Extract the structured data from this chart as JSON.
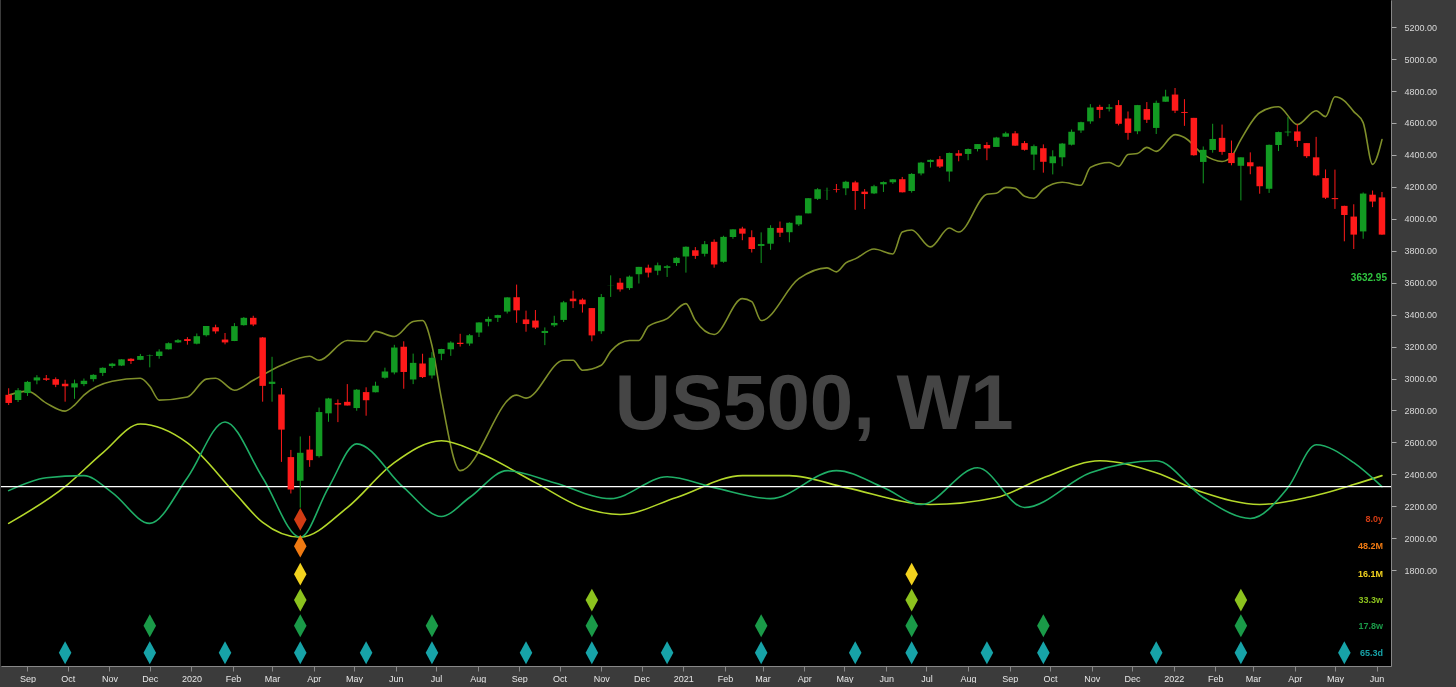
{
  "chart_data": {
    "type": "candlestick",
    "x": [
      "2019-08-18",
      "2019-08-25",
      "2019-09-01",
      "2019-09-08",
      "2019-09-15",
      "2019-09-22",
      "2019-09-29",
      "2019-10-06",
      "2019-10-13",
      "2019-10-20",
      "2019-10-27",
      "2019-11-03",
      "2019-11-10",
      "2019-11-17",
      "2019-11-24",
      "2019-12-01",
      "2019-12-08",
      "2019-12-15",
      "2019-12-22",
      "2019-12-29",
      "2020-01-05",
      "2020-01-12",
      "2020-01-19",
      "2020-01-26",
      "2020-02-02",
      "2020-02-09",
      "2020-02-16",
      "2020-02-23",
      "2020-03-01",
      "2020-03-08",
      "2020-03-15",
      "2020-03-22",
      "2020-03-29",
      "2020-04-05",
      "2020-04-12",
      "2020-04-19",
      "2020-04-26",
      "2020-05-03",
      "2020-05-10",
      "2020-05-17",
      "2020-05-24",
      "2020-05-31",
      "2020-06-07",
      "2020-06-14",
      "2020-06-21",
      "2020-06-28",
      "2020-07-05",
      "2020-07-12",
      "2020-07-19",
      "2020-07-26",
      "2020-08-02",
      "2020-08-09",
      "2020-08-16",
      "2020-08-23",
      "2020-08-30",
      "2020-09-06",
      "2020-09-13",
      "2020-09-20",
      "2020-09-27",
      "2020-10-04",
      "2020-10-11",
      "2020-10-18",
      "2020-10-25",
      "2020-11-01",
      "2020-11-08",
      "2020-11-15",
      "2020-11-22",
      "2020-11-29",
      "2020-12-06",
      "2020-12-13",
      "2020-12-20",
      "2020-12-27",
      "2021-01-03",
      "2021-01-10",
      "2021-01-17",
      "2021-01-24",
      "2021-01-31",
      "2021-02-07",
      "2021-02-14",
      "2021-02-21",
      "2021-02-28",
      "2021-03-07",
      "2021-03-14",
      "2021-03-21",
      "2021-03-28",
      "2021-04-04",
      "2021-04-11",
      "2021-04-18",
      "2021-04-25",
      "2021-05-02",
      "2021-05-09",
      "2021-05-16",
      "2021-05-23",
      "2021-05-30",
      "2021-06-06",
      "2021-06-13",
      "2021-06-20",
      "2021-06-27",
      "2021-07-04",
      "2021-07-11",
      "2021-07-18",
      "2021-07-25",
      "2021-08-01",
      "2021-08-08",
      "2021-08-15",
      "2021-08-22",
      "2021-08-29",
      "2021-09-05",
      "2021-09-12",
      "2021-09-19",
      "2021-09-26",
      "2021-10-03",
      "2021-10-10",
      "2021-10-17",
      "2021-10-24",
      "2021-10-31",
      "2021-11-07",
      "2021-11-14",
      "2021-11-21",
      "2021-11-28",
      "2021-12-05",
      "2021-12-12",
      "2021-12-19",
      "2021-12-26",
      "2022-01-02",
      "2022-01-09",
      "2022-01-16",
      "2022-01-23",
      "2022-01-30",
      "2022-02-06",
      "2022-02-13",
      "2022-02-20",
      "2022-02-27",
      "2022-03-06",
      "2022-03-13",
      "2022-03-20",
      "2022-03-27",
      "2022-04-03",
      "2022-04-10",
      "2022-04-17",
      "2022-04-24",
      "2022-05-01",
      "2022-05-08",
      "2022-05-15",
      "2022-05-22",
      "2022-05-29",
      "2022-06-05"
    ],
    "ohlc": [
      [
        2898,
        2939,
        2834,
        2847
      ],
      [
        2866,
        2940,
        2853,
        2926
      ],
      [
        2909,
        2985,
        2891,
        2979
      ],
      [
        2988,
        3021,
        2964,
        3007
      ],
      [
        3001,
        3022,
        2985,
        2992
      ],
      [
        2996,
        3007,
        2946,
        2961
      ],
      [
        2967,
        2992,
        2855,
        2952
      ],
      [
        2944,
        2993,
        2873,
        2970
      ],
      [
        2965,
        3000,
        2952,
        2986
      ],
      [
        2996,
        3027,
        2981,
        3023
      ],
      [
        3035,
        3070,
        3016,
        3067
      ],
      [
        3078,
        3098,
        3066,
        3093
      ],
      [
        3081,
        3121,
        3078,
        3120
      ],
      [
        3123,
        3127,
        3091,
        3110
      ],
      [
        3117,
        3154,
        3115,
        3141
      ],
      [
        3143,
        3150,
        3070,
        3146
      ],
      [
        3141,
        3183,
        3124,
        3169
      ],
      [
        3183,
        3226,
        3182,
        3221
      ],
      [
        3226,
        3247,
        3223,
        3240
      ],
      [
        3247,
        3259,
        3212,
        3235
      ],
      [
        3218,
        3282,
        3214,
        3265
      ],
      [
        3271,
        3329,
        3263,
        3329
      ],
      [
        3321,
        3337,
        3281,
        3295
      ],
      [
        3244,
        3285,
        3214,
        3226
      ],
      [
        3235,
        3347,
        3234,
        3328
      ],
      [
        3334,
        3385,
        3331,
        3380
      ],
      [
        3380,
        3393,
        3328,
        3338
      ],
      [
        3257,
        3260,
        2855,
        2954
      ],
      [
        2966,
        3136,
        2855,
        2980
      ],
      [
        2900,
        2940,
        2478,
        2680
      ],
      [
        2508,
        2553,
        2280,
        2305
      ],
      [
        2360,
        2637,
        2191,
        2535
      ],
      [
        2555,
        2641,
        2447,
        2489
      ],
      [
        2514,
        2818,
        2505,
        2790
      ],
      [
        2782,
        2879,
        2729,
        2875
      ],
      [
        2846,
        2869,
        2727,
        2837
      ],
      [
        2854,
        2965,
        2831,
        2831
      ],
      [
        2815,
        2934,
        2798,
        2930
      ],
      [
        2915,
        2945,
        2767,
        2864
      ],
      [
        2914,
        2980,
        2913,
        2955
      ],
      [
        3005,
        3068,
        2999,
        3044
      ],
      [
        3038,
        3211,
        3026,
        3194
      ],
      [
        3199,
        3233,
        2936,
        3041
      ],
      [
        2994,
        3156,
        2965,
        3098
      ],
      [
        3094,
        3155,
        3003,
        3009
      ],
      [
        3019,
        3165,
        3000,
        3130
      ],
      [
        3155,
        3186,
        3115,
        3185
      ],
      [
        3183,
        3233,
        3142,
        3225
      ],
      [
        3224,
        3280,
        3200,
        3216
      ],
      [
        3219,
        3279,
        3205,
        3271
      ],
      [
        3288,
        3352,
        3260,
        3351
      ],
      [
        3356,
        3387,
        3327,
        3373
      ],
      [
        3380,
        3399,
        3354,
        3397
      ],
      [
        3419,
        3509,
        3407,
        3508
      ],
      [
        3509,
        3588,
        3349,
        3427
      ],
      [
        3370,
        3425,
        3293,
        3341
      ],
      [
        3363,
        3429,
        3310,
        3319
      ],
      [
        3285,
        3320,
        3209,
        3298
      ],
      [
        3333,
        3393,
        3323,
        3348
      ],
      [
        3367,
        3486,
        3354,
        3477
      ],
      [
        3500,
        3550,
        3441,
        3484
      ],
      [
        3494,
        3502,
        3413,
        3465
      ],
      [
        3441,
        3441,
        3233,
        3270
      ],
      [
        3296,
        3529,
        3280,
        3510
      ],
      [
        3584,
        3646,
        3511,
        3585
      ],
      [
        3600,
        3628,
        3544,
        3558
      ],
      [
        3566,
        3645,
        3555,
        3638
      ],
      [
        3653,
        3699,
        3595,
        3699
      ],
      [
        3694,
        3713,
        3633,
        3663
      ],
      [
        3675,
        3726,
        3647,
        3709
      ],
      [
        3693,
        3711,
        3636,
        3703
      ],
      [
        3723,
        3760,
        3705,
        3756
      ],
      [
        3764,
        3827,
        3663,
        3825
      ],
      [
        3803,
        3823,
        3749,
        3768
      ],
      [
        3781,
        3861,
        3764,
        3841
      ],
      [
        3856,
        3871,
        3694,
        3714
      ],
      [
        3731,
        3894,
        3725,
        3887
      ],
      [
        3886,
        3935,
        3875,
        3934
      ],
      [
        3939,
        3950,
        3866,
        3907
      ],
      [
        3885,
        3928,
        3789,
        3811
      ],
      [
        3830,
        3915,
        3723,
        3842
      ],
      [
        3844,
        3960,
        3806,
        3943
      ],
      [
        3943,
        3983,
        3886,
        3913
      ],
      [
        3916,
        3978,
        3853,
        3975
      ],
      [
        3965,
        4020,
        3955,
        4020
      ],
      [
        4034,
        4130,
        4034,
        4129
      ],
      [
        4125,
        4192,
        4118,
        4185
      ],
      [
        4179,
        4195,
        4118,
        4180
      ],
      [
        4185,
        4218,
        4165,
        4181
      ],
      [
        4191,
        4238,
        4148,
        4232
      ],
      [
        4228,
        4238,
        4056,
        4174
      ],
      [
        4170,
        4186,
        4061,
        4155
      ],
      [
        4159,
        4213,
        4155,
        4204
      ],
      [
        4216,
        4234,
        4168,
        4230
      ],
      [
        4229,
        4249,
        4219,
        4247
      ],
      [
        4248,
        4262,
        4165,
        4166
      ],
      [
        4174,
        4286,
        4164,
        4281
      ],
      [
        4284,
        4356,
        4272,
        4352
      ],
      [
        4356,
        4372,
        4321,
        4369
      ],
      [
        4373,
        4393,
        4318,
        4327
      ],
      [
        4296,
        4415,
        4233,
        4412
      ],
      [
        4410,
        4430,
        4360,
        4395
      ],
      [
        4406,
        4440,
        4367,
        4437
      ],
      [
        4437,
        4468,
        4422,
        4468
      ],
      [
        4462,
        4480,
        4367,
        4441
      ],
      [
        4450,
        4513,
        4450,
        4509
      ],
      [
        4514,
        4545,
        4513,
        4535
      ],
      [
        4535,
        4549,
        4457,
        4458
      ],
      [
        4474,
        4487,
        4427,
        4432
      ],
      [
        4402,
        4465,
        4305,
        4455
      ],
      [
        4442,
        4466,
        4289,
        4357
      ],
      [
        4348,
        4429,
        4278,
        4391
      ],
      [
        4385,
        4475,
        4329,
        4471
      ],
      [
        4464,
        4559,
        4459,
        4545
      ],
      [
        4553,
        4608,
        4538,
        4605
      ],
      [
        4610,
        4718,
        4595,
        4697
      ],
      [
        4701,
        4714,
        4630,
        4682
      ],
      [
        4689,
        4718,
        4672,
        4698
      ],
      [
        4712,
        4743,
        4585,
        4595
      ],
      [
        4628,
        4672,
        4495,
        4538
      ],
      [
        4548,
        4713,
        4530,
        4712
      ],
      [
        4687,
        4731,
        4600,
        4620
      ],
      [
        4569,
        4740,
        4531,
        4726
      ],
      [
        4733,
        4808,
        4733,
        4766
      ],
      [
        4778,
        4819,
        4662,
        4677
      ],
      [
        4669,
        4749,
        4582,
        4663
      ],
      [
        4632,
        4632,
        4395,
        4398
      ],
      [
        4356,
        4453,
        4222,
        4432
      ],
      [
        4431,
        4595,
        4414,
        4500
      ],
      [
        4507,
        4590,
        4401,
        4419
      ],
      [
        4412,
        4490,
        4335,
        4349
      ],
      [
        4332,
        4385,
        4115,
        4385
      ],
      [
        4354,
        4416,
        4279,
        4329
      ],
      [
        4327,
        4327,
        4157,
        4204
      ],
      [
        4188,
        4465,
        4162,
        4463
      ],
      [
        4462,
        4546,
        4424,
        4543
      ],
      [
        4541,
        4637,
        4517,
        4546
      ],
      [
        4547,
        4594,
        4450,
        4488
      ],
      [
        4474,
        4474,
        4381,
        4392
      ],
      [
        4385,
        4513,
        4267,
        4272
      ],
      [
        4255,
        4309,
        4124,
        4132
      ],
      [
        4130,
        4308,
        4062,
        4123
      ],
      [
        4081,
        4082,
        3859,
        4024
      ],
      [
        4014,
        4091,
        3811,
        3901
      ],
      [
        3921,
        4165,
        3875,
        4158
      ],
      [
        4151,
        4177,
        4073,
        4108
      ],
      [
        4134,
        4168,
        3900,
        3901
      ]
    ],
    "colors": [
      "#ff1a1a",
      "#129a22",
      "#129a22",
      "#129a22",
      "#ff1a1a",
      "#ff1a1a",
      "#ff1a1a",
      "#129a22",
      "#129a22",
      "#129a22",
      "#129a22",
      "#129a22",
      "#129a22",
      "#ff1a1a",
      "#129a22",
      "#129a22",
      "#129a22",
      "#129a22",
      "#129a22",
      "#ff1a1a",
      "#129a22",
      "#129a22",
      "#ff1a1a",
      "#ff1a1a",
      "#129a22",
      "#129a22",
      "#ff1a1a",
      "#ff1a1a",
      "#129a22",
      "#ff1a1a",
      "#ff1a1a",
      "#129a22",
      "#ff1a1a",
      "#129a22",
      "#129a22",
      "#ff1a1a",
      "#ff1a1a",
      "#129a22",
      "#ff1a1a",
      "#129a22",
      "#129a22",
      "#129a22",
      "#ff1a1a",
      "#129a22",
      "#ff1a1a",
      "#129a22",
      "#129a22",
      "#129a22",
      "#ff1a1a",
      "#129a22",
      "#129a22",
      "#129a22",
      "#129a22",
      "#129a22",
      "#ff1a1a",
      "#ff1a1a",
      "#ff1a1a",
      "#129a22",
      "#129a22",
      "#129a22",
      "#ff1a1a",
      "#ff1a1a",
      "#ff1a1a",
      "#129a22",
      "#129a22",
      "#ff1a1a",
      "#129a22",
      "#129a22",
      "#ff1a1a",
      "#129a22",
      "#129a22",
      "#129a22",
      "#129a22",
      "#ff1a1a",
      "#129a22",
      "#ff1a1a",
      "#129a22",
      "#129a22",
      "#ff1a1a",
      "#ff1a1a",
      "#129a22",
      "#129a22",
      "#ff1a1a",
      "#129a22",
      "#129a22",
      "#129a22",
      "#129a22",
      "#129a22",
      "#ff1a1a",
      "#129a22",
      "#ff1a1a",
      "#ff1a1a",
      "#129a22",
      "#129a22",
      "#129a22",
      "#ff1a1a",
      "#129a22",
      "#129a22",
      "#129a22",
      "#ff1a1a",
      "#129a22",
      "#ff1a1a",
      "#129a22",
      "#129a22",
      "#ff1a1a",
      "#129a22",
      "#129a22",
      "#ff1a1a",
      "#ff1a1a",
      "#129a22",
      "#ff1a1a",
      "#129a22",
      "#129a22",
      "#129a22",
      "#129a22",
      "#129a22",
      "#ff1a1a",
      "#129a22",
      "#ff1a1a",
      "#ff1a1a",
      "#129a22",
      "#ff1a1a",
      "#129a22",
      "#129a22",
      "#ff1a1a",
      "#ff1a1a",
      "#ff1a1a",
      "#129a22",
      "#129a22",
      "#ff1a1a",
      "#ff1a1a",
      "#129a22",
      "#ff1a1a",
      "#ff1a1a",
      "#129a22",
      "#129a22",
      "#129a22",
      "#ff1a1a",
      "#ff1a1a",
      "#ff1a1a",
      "#ff1a1a",
      "#ff1a1a",
      "#ff1a1a",
      "#ff1a1a",
      "#129a22",
      "#ff1a1a",
      "#ff1a1a"
    ],
    "series": [
      {
        "type": "line",
        "color": "#7f8f2a",
        "x": [
          "2019-08-18",
          "2019-09-01",
          "2019-09-15",
          "2019-09-29",
          "2019-10-06",
          "2019-10-13",
          "2019-11-03",
          "2019-11-24",
          "2019-12-01",
          "2019-12-08",
          "2019-12-29",
          "2020-01-12",
          "2020-01-19",
          "2020-02-02",
          "2020-02-16",
          "2020-03-08",
          "2020-03-29",
          "2020-04-05",
          "2020-04-26",
          "2020-05-10",
          "2020-05-17",
          "2020-05-31",
          "2020-06-14",
          "2020-06-21",
          "2020-06-28",
          "2020-07-05",
          "2020-07-19",
          "2020-08-30",
          "2020-09-06",
          "2020-10-04",
          "2020-10-11",
          "2020-10-18",
          "2020-11-01",
          "2020-11-08",
          "2020-11-22",
          "2020-11-29",
          "2020-12-06",
          "2020-12-20",
          "2021-01-03",
          "2021-01-10",
          "2021-01-24",
          "2021-02-14",
          "2021-02-21",
          "2021-02-28",
          "2021-03-28",
          "2021-04-18",
          "2021-04-25",
          "2021-05-02",
          "2021-05-09",
          "2021-05-23",
          "2021-06-06",
          "2021-06-13",
          "2021-06-20",
          "2021-07-04",
          "2021-07-18",
          "2021-07-25",
          "2021-08-15",
          "2021-08-22",
          "2021-08-29",
          "2021-09-05",
          "2021-09-12",
          "2021-09-19",
          "2021-09-26",
          "2021-10-10",
          "2021-10-24",
          "2021-10-31",
          "2021-11-14",
          "2021-11-21",
          "2021-11-28",
          "2021-12-05",
          "2021-12-12",
          "2021-12-19",
          "2022-01-02",
          "2022-01-09",
          "2022-01-23",
          "2022-02-06",
          "2022-02-13",
          "2022-02-20",
          "2022-03-06",
          "2022-03-20",
          "2022-04-03",
          "2022-04-17",
          "2022-04-24",
          "2022-05-01",
          "2022-05-08",
          "2022-05-15",
          "2022-05-22",
          "2022-05-29",
          "2022-06-05"
        ],
        "values": [
          2896,
          2921,
          2846,
          2796,
          2834,
          2896,
          2983,
          3002,
          2952,
          2865,
          2884,
          2996,
          3002,
          2927,
          2989,
          3083,
          3139,
          3114,
          3238,
          3232,
          3295,
          3263,
          3357,
          3363,
          3207,
          2877,
          2423,
          2896,
          2877,
          3114,
          3114,
          3052,
          3083,
          3170,
          3238,
          3238,
          3326,
          3375,
          3469,
          3363,
          3276,
          3500,
          3481,
          3363,
          3625,
          3693,
          3668,
          3724,
          3749,
          3811,
          3780,
          3917,
          3930,
          3824,
          3942,
          3917,
          4154,
          4160,
          4197,
          4191,
          4141,
          4129,
          4185,
          4229,
          4210,
          4322,
          4353,
          4328,
          4403,
          4409,
          4447,
          4422,
          4527,
          4509,
          4403,
          4359,
          4390,
          4496,
          4664,
          4702,
          4590,
          4677,
          4640,
          4764,
          4739,
          4671,
          4602,
          4341,
          4496
        ]
      },
      {
        "type": "line",
        "color": "#b4d82a",
        "x": [
          "2019-08-18",
          "2019-09-29",
          "2019-10-27",
          "2019-11-24",
          "2019-12-29",
          "2020-02-02",
          "2020-02-23",
          "2020-03-22",
          "2020-04-26",
          "2020-05-31",
          "2020-07-05",
          "2020-08-02",
          "2020-09-13",
          "2020-10-18",
          "2020-11-15",
          "2020-12-27",
          "2021-02-14",
          "2021-03-21",
          "2021-05-02",
          "2021-07-04",
          "2021-08-22",
          "2021-09-26",
          "2021-11-07",
          "2021-12-19",
          "2022-01-23",
          "2022-03-06",
          "2022-04-10",
          "2022-05-15",
          "2022-06-05"
        ],
        "values": [
          2093,
          2323,
          2535,
          2715,
          2597,
          2286,
          2099,
          2006,
          2192,
          2473,
          2610,
          2535,
          2348,
          2192,
          2149,
          2255,
          2392,
          2392,
          2317,
          2211,
          2255,
          2379,
          2485,
          2410,
          2286,
          2211,
          2255,
          2336,
          2392
        ]
      },
      {
        "type": "line",
        "color": "#1fae66",
        "x": [
          "2019-08-18",
          "2019-09-15",
          "2019-10-13",
          "2019-11-03",
          "2019-12-01",
          "2019-12-29",
          "2020-01-26",
          "2020-02-23",
          "2020-03-22",
          "2020-04-12",
          "2020-05-03",
          "2020-06-07",
          "2020-07-05",
          "2020-07-26",
          "2020-08-23",
          "2020-09-27",
          "2020-11-08",
          "2020-12-20",
          "2021-01-24",
          "2021-03-07",
          "2021-04-25",
          "2021-05-30",
          "2021-06-27",
          "2021-08-08",
          "2021-09-12",
          "2021-10-31",
          "2021-12-19",
          "2022-01-23",
          "2022-02-27",
          "2022-03-27",
          "2022-04-17",
          "2022-05-15",
          "2022-06-05"
        ],
        "values": [
          2298,
          2379,
          2392,
          2286,
          2093,
          2379,
          2728,
          2379,
          2006,
          2317,
          2591,
          2317,
          2136,
          2255,
          2423,
          2348,
          2248,
          2385,
          2317,
          2248,
          2423,
          2317,
          2211,
          2441,
          2192,
          2410,
          2485,
          2255,
          2124,
          2317,
          2585,
          2473,
          2323
        ]
      },
      {
        "type": "scatter",
        "marker": "diamond",
        "name": "8.0y",
        "color": "#d23c14",
        "x": [
          "2020-03-22"
        ],
        "values": [
          2118
        ]
      },
      {
        "type": "scatter",
        "marker": "diamond",
        "name": "48.2M",
        "color": "#f07a12",
        "x": [
          "2020-03-22"
        ],
        "values": [
          1950
        ]
      },
      {
        "type": "scatter",
        "marker": "diamond",
        "name": "16.1M",
        "color": "#f2d21e",
        "x": [
          "2020-03-22",
          "2021-06-20"
        ],
        "values": [
          1775,
          1775
        ]
      },
      {
        "type": "scatter",
        "marker": "diamond",
        "name": "33.3w",
        "color": "#8cc21e",
        "x": [
          "2020-03-22",
          "2020-10-25",
          "2021-06-20",
          "2022-02-20"
        ],
        "values": [
          1613,
          1613,
          1613,
          1613
        ]
      },
      {
        "type": "scatter",
        "marker": "diamond",
        "name": "17.8w",
        "color": "#1a9a48",
        "x": [
          "2019-12-01",
          "2020-03-22",
          "2020-06-28",
          "2020-10-25",
          "2021-02-28",
          "2021-06-20",
          "2021-09-26",
          "2022-02-20"
        ],
        "values": [
          1452,
          1452,
          1452,
          1452,
          1452,
          1452,
          1452,
          1452
        ]
      },
      {
        "type": "scatter",
        "marker": "diamond",
        "name": "65.3d",
        "color": "#17a3a8",
        "x": [
          "2019-09-29",
          "2019-12-01",
          "2020-01-26",
          "2020-03-22",
          "2020-05-10",
          "2020-06-28",
          "2020-09-06",
          "2020-10-25",
          "2020-12-20",
          "2021-02-28",
          "2021-05-09",
          "2021-06-20",
          "2021-08-15",
          "2021-09-26",
          "2021-12-19",
          "2022-02-20",
          "2022-05-08"
        ],
        "values": [
          1283,
          1283,
          1283,
          1283,
          1283,
          1283,
          1283,
          1283,
          1283,
          1283,
          1283,
          1283,
          1283,
          1283,
          1283,
          1283,
          1283
        ]
      }
    ],
    "ref_lines": [
      {
        "axis": "y",
        "value": 2323,
        "color": "#ffffff"
      }
    ],
    "annotations": [
      "US500, W1",
      "3632.95"
    ],
    "xlim": [
      "2019-08-16",
      "2022-06-08"
    ],
    "xticks": [
      {
        "value": "2019-09-01",
        "label": "Sep"
      },
      {
        "value": "2019-10-01",
        "label": "Oct"
      },
      {
        "value": "2019-11-01",
        "label": "Nov"
      },
      {
        "value": "2019-12-01",
        "label": "Dec"
      },
      {
        "value": "2020-01-01",
        "label": "2020"
      },
      {
        "value": "2020-02-01",
        "label": "Feb"
      },
      {
        "value": "2020-03-01",
        "label": "Mar"
      },
      {
        "value": "2020-04-01",
        "label": "Apr"
      },
      {
        "value": "2020-05-01",
        "label": "May"
      },
      {
        "value": "2020-06-01",
        "label": "Jun"
      },
      {
        "value": "2020-07-01",
        "label": "Jul"
      },
      {
        "value": "2020-08-01",
        "label": "Aug"
      },
      {
        "value": "2020-09-01",
        "label": "Sep"
      },
      {
        "value": "2020-10-01",
        "label": "Oct"
      },
      {
        "value": "2020-11-01",
        "label": "Nov"
      },
      {
        "value": "2020-12-01",
        "label": "Dec"
      },
      {
        "value": "2021-01-01",
        "label": "2021"
      },
      {
        "value": "2021-02-01",
        "label": "Feb"
      },
      {
        "value": "2021-03-01",
        "label": "Mar"
      },
      {
        "value": "2021-04-01",
        "label": "Apr"
      },
      {
        "value": "2021-05-01",
        "label": "May"
      },
      {
        "value": "2021-06-01",
        "label": "Jun"
      },
      {
        "value": "2021-07-01",
        "label": "Jul"
      },
      {
        "value": "2021-08-01",
        "label": "Aug"
      },
      {
        "value": "2021-09-01",
        "label": "Sep"
      },
      {
        "value": "2021-10-01",
        "label": "Oct"
      },
      {
        "value": "2021-11-01",
        "label": "Nov"
      },
      {
        "value": "2021-12-01",
        "label": "Dec"
      },
      {
        "value": "2022-01-01",
        "label": "2022"
      },
      {
        "value": "2022-02-01",
        "label": "Feb"
      },
      {
        "value": "2022-03-01",
        "label": "Mar"
      },
      {
        "value": "2022-04-01",
        "label": "Apr"
      },
      {
        "value": "2022-05-01",
        "label": "May"
      },
      {
        "value": "2022-06-01",
        "label": "Jun"
      }
    ],
    "ylim": [
      1200,
      5370
    ],
    "yticks": [
      {
        "value": 1800,
        "label": "1800.00"
      },
      {
        "value": 2000,
        "label": "2000.00"
      },
      {
        "value": 2200,
        "label": "2200.00"
      },
      {
        "value": 2400,
        "label": "2400.00"
      },
      {
        "value": 2600,
        "label": "2600.00"
      },
      {
        "value": 2800,
        "label": "2800.00"
      },
      {
        "value": 3000,
        "label": "3000.00"
      },
      {
        "value": 3200,
        "label": "3200.00"
      },
      {
        "value": 3400,
        "label": "3400.00"
      },
      {
        "value": 3600,
        "label": "3600.00"
      },
      {
        "value": 3800,
        "label": "3800.00"
      },
      {
        "value": 4000,
        "label": "4000.00"
      },
      {
        "value": 4200,
        "label": "4200.00"
      },
      {
        "value": 4400,
        "label": "4400.00"
      },
      {
        "value": 4600,
        "label": "4600.00"
      },
      {
        "value": 4800,
        "label": "4800.00"
      },
      {
        "value": 5000,
        "label": "5000.00"
      },
      {
        "value": 5200,
        "label": "5200.00"
      }
    ]
  }
}
